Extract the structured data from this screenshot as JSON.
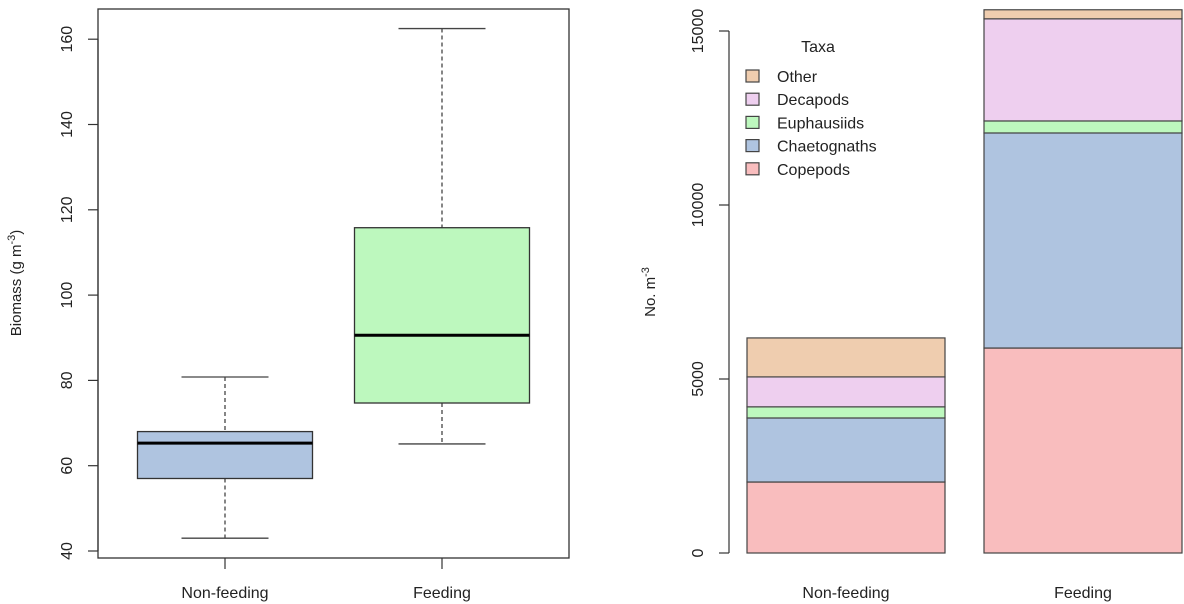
{
  "chart_data": [
    {
      "type": "boxplot",
      "title": "",
      "xlabel": "",
      "ylabel": "Biomass (g m",
      "ylabel_superscript": "-3",
      "ylabel_suffix": ")",
      "ylim": [
        37,
        166
      ],
      "yticks": [
        40,
        60,
        80,
        100,
        120,
        140,
        160
      ],
      "categories": [
        "Non-feeding",
        "Feeding"
      ],
      "boxes": [
        {
          "name": "Non-feeding",
          "whisker_low": 43,
          "q1": 57,
          "median": 65.3,
          "q3": 68,
          "whisker_high": 80.8,
          "color": "#AFC4E0"
        },
        {
          "name": "Feeding",
          "whisker_low": 65.1,
          "q1": 74.7,
          "median": 90.6,
          "q3": 115.8,
          "whisker_high": 162.5,
          "color": "#BDF8BE"
        }
      ],
      "grid": false
    },
    {
      "type": "bar",
      "stacked": true,
      "title": "",
      "xlabel": "",
      "ylabel": "No. m",
      "ylabel_superscript": "-3",
      "ylim": [
        0,
        15600
      ],
      "yticks": [
        0,
        5000,
        10000,
        15000
      ],
      "categories": [
        "Non-feeding",
        "Feeding"
      ],
      "series": [
        {
          "name": "Copepods",
          "color": "#F9BDBE",
          "values": [
            2040,
            5890
          ]
        },
        {
          "name": "Chaetognaths",
          "color": "#AFC4E0",
          "values": [
            1840,
            6180
          ]
        },
        {
          "name": "Euphausiids",
          "color": "#BDF8BE",
          "values": [
            320,
            345
          ]
        },
        {
          "name": "Decapods",
          "color": "#EECFEF",
          "values": [
            860,
            2935
          ]
        },
        {
          "name": "Other",
          "color": "#EFCDAF",
          "values": [
            1120,
            260
          ]
        }
      ],
      "legend": {
        "title": "Taxa",
        "placement": "top-left",
        "order": [
          "Other",
          "Decapods",
          "Euphausiids",
          "Chaetognaths",
          "Copepods"
        ]
      },
      "grid": false
    }
  ]
}
